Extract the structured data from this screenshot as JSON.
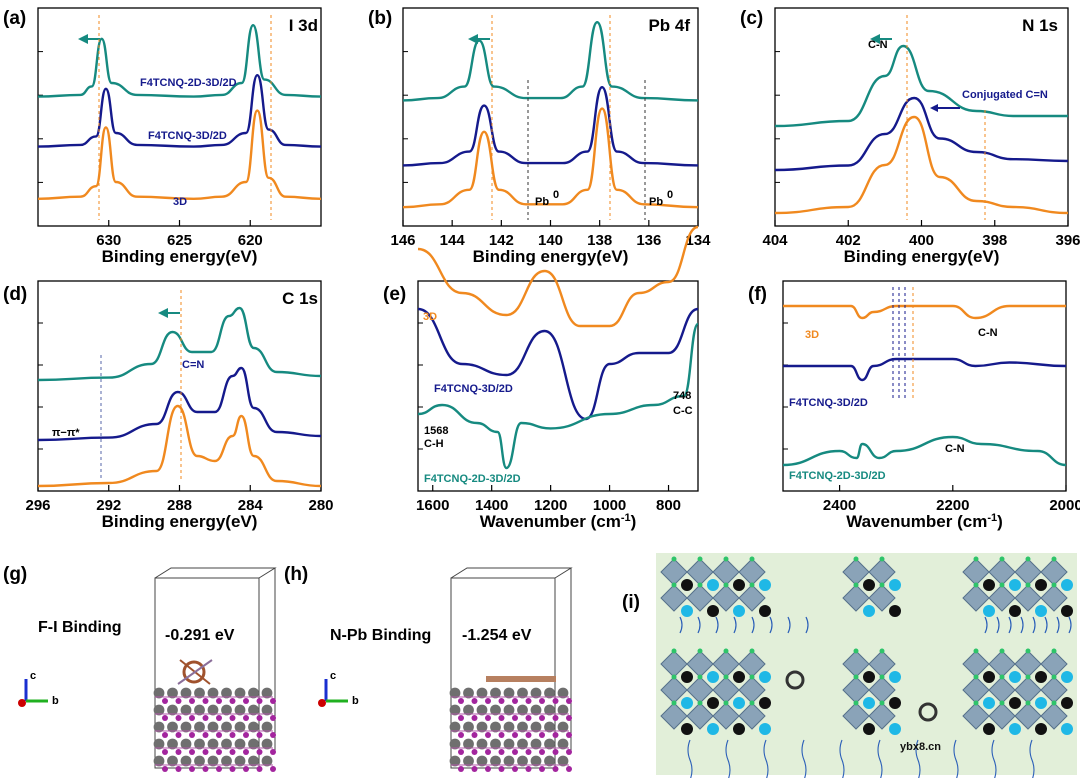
{
  "colors": {
    "teal": "#168a80",
    "navy": "#151a8c",
    "orange": "#f0891f",
    "lightgreen": "#e2efd9"
  },
  "chart_data": [
    {
      "id": "a",
      "type": "line",
      "panel_label": "(a)",
      "corner_title": "I 3d",
      "xlabel": "Binding energy(eV)",
      "xlim": [
        635,
        615
      ],
      "x_ticks": [
        "630",
        "625",
        "620"
      ],
      "series": [
        {
          "name": "3D",
          "color": "orange",
          "x": [
            635,
            632,
            630.9,
            630.2,
            629.5,
            628,
            624,
            622,
            620.3,
            619.5,
            618.7,
            617.5,
            615
          ],
          "y": [
            1,
            1.5,
            4,
            18,
            5,
            1.5,
            1,
            1.5,
            5,
            22,
            6,
            1.5,
            1
          ]
        },
        {
          "name": "F4TCNQ-3D/2D",
          "color": "navy",
          "x": [
            635,
            632,
            630.9,
            630.2,
            629.5,
            628,
            624,
            622,
            620.3,
            619.5,
            618.7,
            617.5,
            615
          ],
          "y": [
            1,
            1.5,
            4,
            18,
            5,
            1.5,
            1,
            1.5,
            5,
            22,
            6,
            1.5,
            1
          ]
        },
        {
          "name": "F4TCNQ-2D-3D/2D",
          "color": "teal",
          "x": [
            635,
            632,
            631.2,
            630.5,
            629.8,
            628,
            624,
            622,
            620.6,
            619.8,
            619,
            617.5,
            615
          ],
          "y": [
            1,
            1.5,
            4,
            18,
            5,
            1.5,
            1,
            1.5,
            5,
            22,
            6,
            1.5,
            1
          ]
        }
      ]
    },
    {
      "id": "b",
      "type": "line",
      "panel_label": "(b)",
      "corner_title": "Pb 4f",
      "xlabel": "Binding energy(eV)",
      "xlim": [
        146,
        134
      ],
      "x_ticks": [
        "146",
        "144",
        "142",
        "140",
        "138",
        "136",
        "134"
      ],
      "annotations": [
        "Pb",
        "0",
        "Pb",
        "0"
      ],
      "series": [
        {
          "name": "3D",
          "color": "orange",
          "x": [
            146,
            144.5,
            143.3,
            142.7,
            142.1,
            141,
            139.5,
            138.5,
            137.9,
            137.3,
            136.2,
            134
          ],
          "y": [
            1,
            1.5,
            4,
            14,
            4,
            1.5,
            1.5,
            4,
            18,
            4,
            1.5,
            1
          ]
        },
        {
          "name": "F4TCNQ-3D/2D",
          "color": "navy",
          "x": [
            146,
            144.5,
            143.3,
            142.7,
            142.1,
            141,
            139.5,
            138.5,
            137.9,
            137.3,
            136.2,
            134
          ],
          "y": [
            1,
            1.5,
            4,
            14,
            4,
            1.5,
            1.5,
            4,
            18,
            4,
            1.5,
            1
          ]
        },
        {
          "name": "F4TCNQ-2D-3D/2D",
          "color": "teal",
          "x": [
            146,
            144.6,
            143.5,
            142.9,
            142.3,
            141,
            139.6,
            138.7,
            138.1,
            137.5,
            136.2,
            134
          ],
          "y": [
            1,
            1.5,
            4,
            14,
            4,
            1.5,
            1.5,
            4,
            18,
            4,
            1.5,
            1
          ]
        }
      ]
    },
    {
      "id": "c",
      "type": "line",
      "panel_label": "(c)",
      "corner_title": "N 1s",
      "xlabel": "Binding energy(eV)",
      "xlim": [
        404,
        396
      ],
      "x_ticks": [
        "404",
        "402",
        "400",
        "398",
        "396"
      ],
      "annotations": [
        "C-N",
        "Conjugated C=N"
      ],
      "series": [
        {
          "name": "3D",
          "color": "orange",
          "x": [
            404,
            402,
            401,
            400.2,
            399.5,
            398.5,
            397.5,
            396
          ],
          "y": [
            0,
            0.5,
            4,
            8,
            3,
            1,
            0.5,
            0
          ]
        },
        {
          "name": "F4TCNQ-3D/2D",
          "color": "navy",
          "x": [
            404,
            402,
            401,
            400.2,
            399.5,
            398.5,
            397.5,
            396
          ],
          "y": [
            0,
            0.5,
            4,
            8,
            3.5,
            2,
            1.2,
            1
          ]
        },
        {
          "name": "F4TCNQ-2D-3D/2D",
          "color": "teal",
          "x": [
            404,
            402,
            401,
            400.5,
            399.8,
            398.5,
            397.5,
            396
          ],
          "y": [
            0,
            0.5,
            5,
            8,
            3.5,
            1.5,
            1,
            1
          ]
        }
      ]
    },
    {
      "id": "d",
      "type": "line",
      "panel_label": "(d)",
      "corner_title": "C 1s",
      "xlabel": "Binding energy(eV)",
      "xlim": [
        296,
        280
      ],
      "x_ticks": [
        "296",
        "292",
        "288",
        "284",
        "280"
      ],
      "annotations": [
        "C=N",
        "π−π*"
      ],
      "series": [
        {
          "name": "3D",
          "color": "orange",
          "x": [
            296,
            292,
            289.3,
            288.1,
            287,
            286,
            285,
            284.5,
            283.8,
            282.5,
            280
          ],
          "y": [
            0,
            0.3,
            1.5,
            8,
            3,
            2.5,
            5,
            7,
            3,
            0.5,
            0
          ]
        },
        {
          "name": "F4TCNQ-3D/2D",
          "color": "navy",
          "x": [
            296,
            292,
            289.3,
            288.1,
            287,
            286,
            285,
            284.5,
            283.8,
            282.5,
            280
          ],
          "y": [
            0,
            0.3,
            2,
            6,
            3.5,
            3.5,
            8,
            9,
            4,
            1,
            0.5
          ]
        },
        {
          "name": "F4TCNQ-2D-3D/2D",
          "color": "teal",
          "x": [
            296,
            292,
            289.6,
            288.4,
            287.3,
            286.2,
            285.2,
            284.6,
            283.8,
            282.5,
            280
          ],
          "y": [
            0,
            0.3,
            2,
            6,
            3.5,
            3.5,
            8,
            9,
            4,
            1,
            0.5
          ]
        }
      ]
    },
    {
      "id": "e",
      "type": "line",
      "panel_label": "(e)",
      "xlabel": "Wavenumber (cm",
      "xlabel_sup": "-1",
      "xlabel_end": ")",
      "xlim": [
        1650,
        700
      ],
      "x_ticks": [
        "1600",
        "1400",
        "1200",
        "1000",
        "800"
      ],
      "annotations": [
        "1568",
        "C-H",
        "748",
        "C-C"
      ],
      "series": [
        {
          "name": "3D",
          "color": "orange",
          "x": [
            1650,
            1500,
            1350,
            1220,
            1100,
            1000,
            900,
            800,
            700
          ],
          "y": [
            4,
            2,
            1,
            3,
            0.5,
            0.5,
            2,
            2.5,
            5
          ]
        },
        {
          "name": "F4TCNQ-3D/2D",
          "color": "navy",
          "x": [
            1650,
            1500,
            1350,
            1220,
            1080,
            1000,
            900,
            800,
            700
          ],
          "y": [
            4,
            1.5,
            1,
            3,
            -1,
            1.5,
            2,
            2,
            4
          ]
        },
        {
          "name": "F4TCNQ-2D-3D/2D",
          "color": "teal",
          "x": [
            1650,
            1568,
            1450,
            1380,
            1350,
            1300,
            1200,
            1000,
            850,
            748,
            700
          ],
          "y": [
            1,
            1.5,
            0.5,
            0,
            -2,
            0.5,
            0.2,
            1,
            1.5,
            2,
            6
          ]
        }
      ]
    },
    {
      "id": "f",
      "type": "line",
      "panel_label": "(f)",
      "xlabel": "Wavenumber (cm",
      "xlabel_sup": "-1",
      "xlabel_end": ")",
      "xlim": [
        2500,
        2000
      ],
      "x_ticks": [
        "2400",
        "2200",
        "2000"
      ],
      "annotations": [
        "C-N",
        "C-N"
      ],
      "series": [
        {
          "name": "3D",
          "color": "orange",
          "x": [
            2500,
            2380,
            2360,
            2340,
            2300,
            2200,
            2160,
            2100,
            2000
          ],
          "y": [
            4,
            4,
            2,
            3,
            4,
            4,
            2,
            4,
            4
          ]
        },
        {
          "name": "F4TCNQ-3D/2D",
          "color": "navy",
          "x": [
            2500,
            2380,
            2360,
            2340,
            2300,
            2200,
            2160,
            2100,
            2000
          ],
          "y": [
            2,
            2,
            0,
            2,
            3,
            3,
            2,
            2.5,
            2
          ]
        },
        {
          "name": "F4TCNQ-2D-3D/2D",
          "color": "teal",
          "x": [
            2500,
            2400,
            2370,
            2360,
            2330,
            2300,
            2200,
            2150,
            2050,
            2000
          ],
          "y": [
            0,
            2,
            1,
            3,
            1,
            2,
            4,
            3,
            2,
            0
          ]
        }
      ]
    }
  ],
  "panels": {
    "g": {
      "label": "(g)",
      "title": "F-I Binding",
      "energy": "-0.291 eV"
    },
    "h": {
      "label": "(h)",
      "title": "N-Pb Binding",
      "energy": "-1.254 eV"
    },
    "i": {
      "label": "(i)"
    },
    "axis_triad": {
      "c": "c",
      "b": "b"
    }
  },
  "watermark": "ybx8.cn"
}
